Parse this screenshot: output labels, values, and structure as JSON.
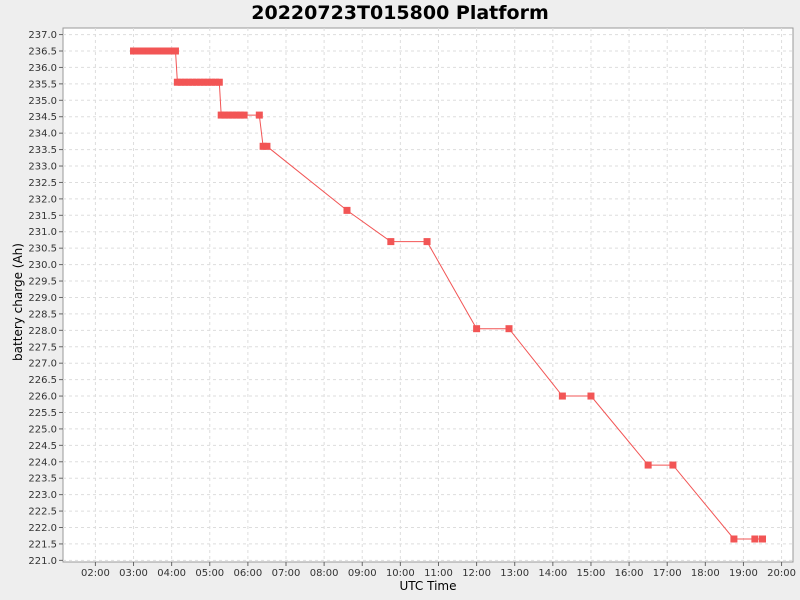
{
  "chart_data": {
    "type": "line",
    "title": "20220723T015800 Platform",
    "xlabel": "UTC Time",
    "ylabel": "battery charge (Ah)",
    "x_unit": "hours UTC",
    "xlim": [
      1.15,
      20.3
    ],
    "ylim": [
      220.95,
      237.2
    ],
    "x_ticks": [
      2,
      3,
      4,
      5,
      6,
      7,
      8,
      9,
      10,
      11,
      12,
      13,
      14,
      15,
      16,
      17,
      18,
      19,
      20
    ],
    "x_tick_labels": [
      "02:00",
      "03:00",
      "04:00",
      "05:00",
      "06:00",
      "07:00",
      "08:00",
      "09:00",
      "10:00",
      "11:00",
      "12:00",
      "13:00",
      "14:00",
      "15:00",
      "16:00",
      "17:00",
      "18:00",
      "19:00",
      "20:00"
    ],
    "y_ticks": [
      221.0,
      221.5,
      222.0,
      222.5,
      223.0,
      223.5,
      224.0,
      224.5,
      225.0,
      225.5,
      226.0,
      226.5,
      227.0,
      227.5,
      228.0,
      228.5,
      229.0,
      229.5,
      230.0,
      230.5,
      231.0,
      231.5,
      232.0,
      232.5,
      233.0,
      233.5,
      234.0,
      234.5,
      235.0,
      235.5,
      236.0,
      236.5,
      237.0
    ],
    "y_tick_labels": [
      "221.0",
      "221.5",
      "222.0",
      "222.5",
      "223.0",
      "223.5",
      "224.0",
      "224.5",
      "225.0",
      "225.5",
      "226.0",
      "226.5",
      "227.0",
      "227.5",
      "228.0",
      "228.5",
      "229.0",
      "229.5",
      "230.0",
      "230.5",
      "231.0",
      "231.5",
      "232.0",
      "232.5",
      "233.0",
      "233.5",
      "234.0",
      "234.5",
      "235.0",
      "235.5",
      "236.0",
      "236.5",
      "237.0"
    ],
    "grid": true,
    "colors": {
      "series": "#f25555",
      "plot_bg": "#ffffff",
      "grid": "#dddddd",
      "page_bg": "#eeeeee"
    },
    "series": [
      {
        "x": [
          3.0,
          3.1,
          3.2,
          3.3,
          3.4,
          3.5,
          3.6,
          3.7,
          3.8,
          3.9,
          4.0,
          4.1,
          4.15,
          4.25,
          4.35,
          4.45,
          4.55,
          4.65,
          4.75,
          4.85,
          4.95,
          5.05,
          5.15,
          5.25,
          5.3,
          5.4,
          5.5,
          5.6,
          5.7,
          5.8,
          5.9,
          6.3,
          6.4,
          6.5,
          8.6,
          9.75,
          10.7,
          12.0,
          12.85,
          14.25,
          15.0,
          16.5,
          17.15,
          18.75,
          19.3,
          19.5
        ],
        "y": [
          236.5,
          236.5,
          236.5,
          236.5,
          236.5,
          236.5,
          236.5,
          236.5,
          236.5,
          236.5,
          236.5,
          236.5,
          235.55,
          235.55,
          235.55,
          235.55,
          235.55,
          235.55,
          235.55,
          235.55,
          235.55,
          235.55,
          235.55,
          235.55,
          234.55,
          234.55,
          234.55,
          234.55,
          234.55,
          234.55,
          234.55,
          234.55,
          233.6,
          233.6,
          231.65,
          230.7,
          230.7,
          228.05,
          228.05,
          226.0,
          226.0,
          223.9,
          223.9,
          221.65,
          221.65,
          221.65
        ]
      }
    ]
  }
}
